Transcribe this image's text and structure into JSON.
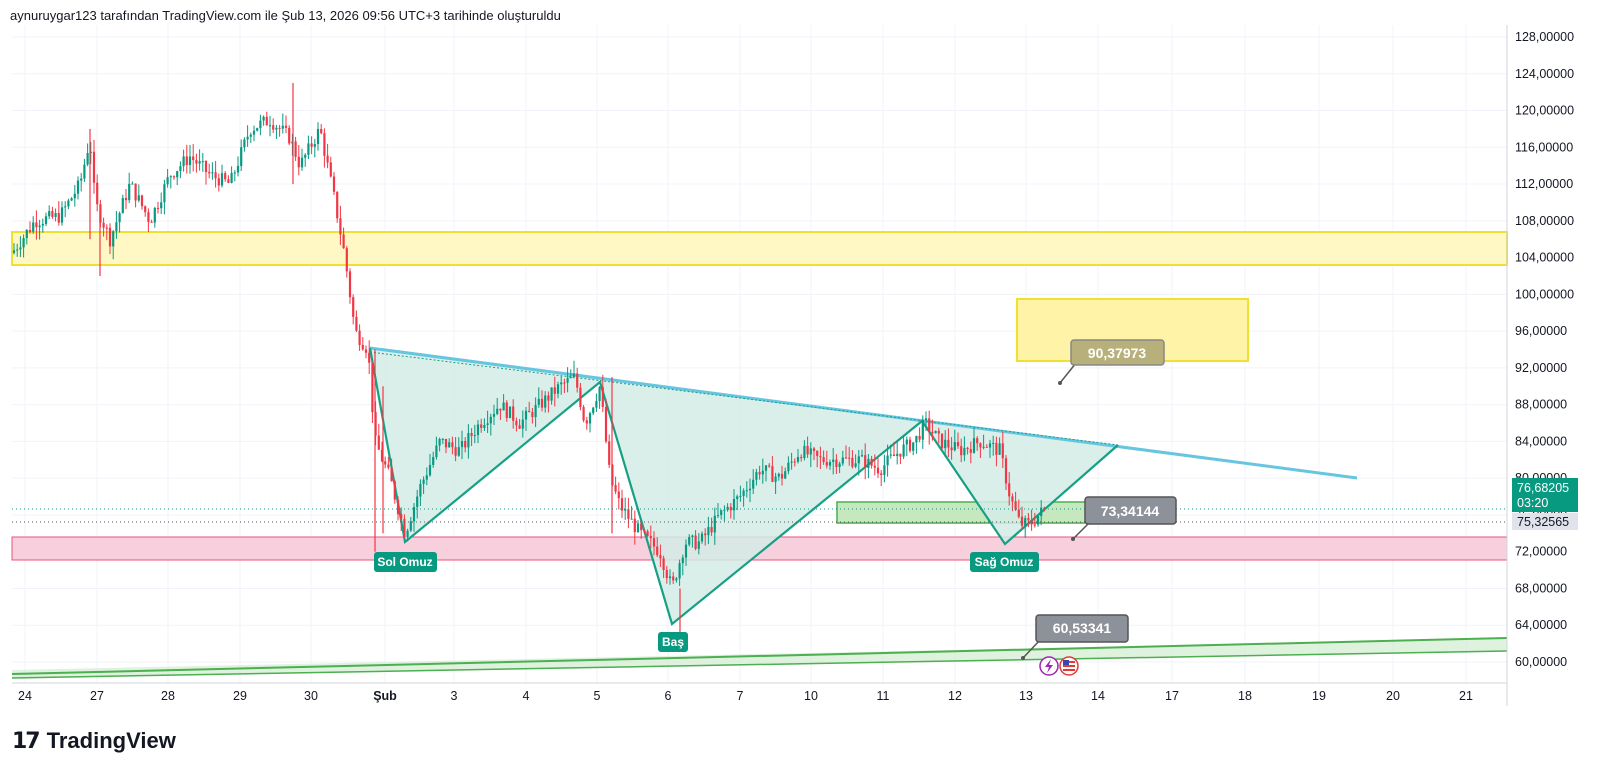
{
  "header": {
    "title": "aynuruygar123 tarafından TradingView.com ile Şub 13, 2026 09:56 UTC+3 tarihinde oluşturuldu"
  },
  "brand": {
    "logo_mark": "17",
    "name": "TradingView"
  },
  "colors": {
    "up": "#089981",
    "down": "#f23645",
    "pattern_fill": "#d3ece6",
    "pattern_line": "#16a085",
    "trend_line": "#67c5e0",
    "support_zone": "#f8d0dd",
    "support_line": "#e8537a",
    "resistance_zone": "#fff8c4",
    "resistance_line": "#f0e130",
    "target_zone": "#fff3a8",
    "green_zone": "#c5e8bf",
    "green_line": "#4caf50",
    "price_badge": "#089981",
    "grey_badge": "#787b86"
  },
  "chart_data": {
    "type": "candlestick",
    "symbol_price_scale": "right",
    "ylim": [
      58,
      130
    ],
    "y_ticks": [
      "128,00000",
      "124,00000",
      "120,00000",
      "116,00000",
      "112,00000",
      "108,00000",
      "104,00000",
      "100,00000",
      "96,00000",
      "92,00000",
      "88,00000",
      "84,00000",
      "80,00000",
      "76,00000",
      "72,00000",
      "68,00000",
      "64,00000",
      "60,00000"
    ],
    "x_ticks": [
      "24",
      "27",
      "28",
      "29",
      "30",
      "Şub",
      "3",
      "4",
      "5",
      "6",
      "7",
      "10",
      "11",
      "12",
      "13",
      "14",
      "17",
      "18",
      "19",
      "20",
      "21"
    ],
    "candles": [
      {
        "x": "24",
        "o": 104,
        "h": 106,
        "l": 103,
        "c": 105
      },
      {
        "x": "27",
        "o": 108,
        "h": 118,
        "l": 104,
        "c": 110
      },
      {
        "x": "28",
        "o": 110,
        "h": 115,
        "l": 106,
        "c": 113
      },
      {
        "x": "29",
        "o": 113,
        "h": 121,
        "l": 110,
        "c": 118
      },
      {
        "x": "30",
        "o": 118,
        "h": 120,
        "l": 98,
        "c": 102
      },
      {
        "x": "Şub",
        "o": 94,
        "h": 96,
        "l": 72,
        "c": 76
      },
      {
        "x": "3",
        "o": 78,
        "h": 89,
        "l": 76,
        "c": 86
      },
      {
        "x": "4",
        "o": 86,
        "h": 92,
        "l": 84,
        "c": 90
      },
      {
        "x": "5",
        "o": 90,
        "h": 91,
        "l": 73,
        "c": 76
      },
      {
        "x": "6",
        "o": 74,
        "h": 76,
        "l": 66,
        "c": 72
      },
      {
        "x": "7",
        "o": 72,
        "h": 82,
        "l": 71,
        "c": 80
      },
      {
        "x": "10",
        "o": 80,
        "h": 84,
        "l": 79,
        "c": 82
      },
      {
        "x": "11",
        "o": 82,
        "h": 86,
        "l": 80,
        "c": 85
      },
      {
        "x": "12",
        "o": 85,
        "h": 86,
        "l": 80,
        "c": 82
      },
      {
        "x": "13",
        "o": 82,
        "h": 84,
        "l": 74,
        "c": 76.68
      }
    ],
    "resistance_zone": [
      103.3,
      106.8
    ],
    "support_zone": [
      70.9,
      73.5
    ],
    "pattern_labels": [
      "Sol Omuz",
      "Baş",
      "Sağ Omuz"
    ],
    "callouts": [
      "90,37973",
      "73,34144",
      "60,53341"
    ],
    "price_labels": {
      "last_price": "76,68205",
      "countdown": "03:20",
      "prev_price": "75,32565"
    }
  }
}
